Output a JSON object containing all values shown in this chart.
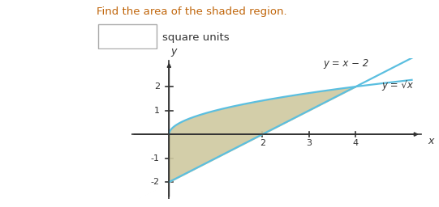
{
  "title_text": "Find the area of the shaded region.",
  "subtitle_text": "square units",
  "label_line": "y = x − 2",
  "label_curve": "y = √x",
  "line_color": "#5bbfe0",
  "curve_color": "#5bbfe0",
  "shade_color": "#cfc9a0",
  "shade_alpha": 0.9,
  "xlim": [
    -0.8,
    5.5
  ],
  "ylim": [
    -2.7,
    3.2
  ],
  "xticks": [
    2,
    3,
    4
  ],
  "yticks": [
    -2,
    -1,
    1,
    2
  ],
  "x_intersect_low": 0,
  "x_intersect_high": 4,
  "figsize": [
    5.41,
    2.56
  ],
  "dpi": 100,
  "bg_color": "#ffffff",
  "axis_color": "#333333",
  "font_size_title": 9.5,
  "font_size_label": 8,
  "font_size_tick": 8,
  "font_size_eq": 8.5,
  "curve_lw": 1.6,
  "axis_lw": 1.2
}
